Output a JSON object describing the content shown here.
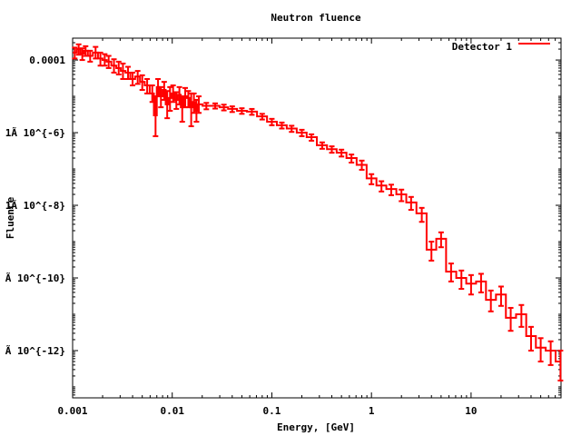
{
  "chart_data": {
    "type": "line",
    "style": "histogram-steps-with-error-bars",
    "title": "Neutron fluence",
    "xlabel": "Energy, [GeV]",
    "ylabel": "Fluence",
    "x_scale": "log",
    "y_scale": "log",
    "xlim": [
      0.001,
      80
    ],
    "ylim": [
      5e-14,
      0.0004
    ],
    "grid": false,
    "legend_position": "top-right",
    "x_ticks": [
      {
        "value": 0.001,
        "label": "0.001"
      },
      {
        "value": 0.01,
        "label": "0.01"
      },
      {
        "value": 0.1,
        "label": "0.1"
      },
      {
        "value": 1,
        "label": "1"
      },
      {
        "value": 10,
        "label": "10"
      }
    ],
    "y_ticks": [
      {
        "value": 0.0001,
        "label": "0.0001"
      },
      {
        "value": 1e-06,
        "label": "1Ã 10^{-6}"
      },
      {
        "value": 1e-08,
        "label": "1Ã 10^{-8}"
      },
      {
        "value": 1e-10,
        "label": "Ã 10^{-10}"
      },
      {
        "value": 1e-12,
        "label": "Ã 10^{-12}"
      }
    ],
    "series": [
      {
        "name": "Detector 1",
        "color": "#ff0000",
        "x": [
          0.00105,
          0.00115,
          0.00125,
          0.00135,
          0.0015,
          0.0017,
          0.0019,
          0.0021,
          0.0023,
          0.0026,
          0.0029,
          0.0032,
          0.0036,
          0.004,
          0.0045,
          0.005,
          0.0056,
          0.0063,
          0.0068,
          0.0072,
          0.0077,
          0.0083,
          0.0089,
          0.0095,
          0.0102,
          0.011,
          0.0118,
          0.0126,
          0.0135,
          0.0145,
          0.0155,
          0.0165,
          0.0175,
          0.0185,
          0.022,
          0.027,
          0.033,
          0.04,
          0.05,
          0.063,
          0.08,
          0.1,
          0.126,
          0.158,
          0.2,
          0.25,
          0.32,
          0.4,
          0.5,
          0.63,
          0.8,
          1.0,
          1.26,
          1.58,
          2.0,
          2.5,
          3.2,
          4.0,
          5.0,
          6.3,
          8.0,
          10.0,
          12.6,
          15.8,
          20.0,
          25.0,
          32.0,
          40.0,
          50.0,
          63.0,
          79.0
        ],
        "y": [
          0.00016,
          0.0002,
          0.00015,
          0.00018,
          0.00013,
          0.00016,
          0.00011,
          0.0001,
          9e-05,
          7e-05,
          6e-05,
          5e-05,
          4.5e-05,
          3e-05,
          3.5e-05,
          2.5e-05,
          2e-05,
          1.2e-05,
          3e-06,
          1.8e-05,
          1e-05,
          1.5e-05,
          6e-06,
          9e-06,
          1.2e-05,
          8e-06,
          1.1e-05,
          5e-06,
          1e-05,
          9e-06,
          5e-06,
          7e-06,
          4e-06,
          6e-06,
          5.5e-06,
          5.5e-06,
          5e-06,
          4.5e-06,
          4e-06,
          3.8e-06,
          2.8e-06,
          2e-06,
          1.6e-06,
          1.3e-06,
          1e-06,
          7.5e-07,
          4.5e-07,
          3.5e-07,
          2.8e-07,
          2e-07,
          1.3e-07,
          5.5e-08,
          3.5e-08,
          2.8e-08,
          2e-08,
          1.2e-08,
          6e-09,
          6e-10,
          1.2e-09,
          1.5e-10,
          1e-10,
          7e-11,
          8e-11,
          2.5e-11,
          3.5e-11,
          8e-12,
          1e-11,
          2.5e-12,
          1.2e-12,
          1e-12,
          5e-13
        ],
        "err_low": [
          0.00011,
          0.00014,
          0.0001,
          0.00013,
          9e-05,
          0.00011,
          7e-05,
          7e-05,
          6e-05,
          4.5e-05,
          4e-05,
          3e-05,
          3e-05,
          2e-05,
          2.2e-05,
          1.5e-05,
          1.2e-05,
          7e-06,
          8e-07,
          1e-05,
          5e-06,
          8e-06,
          2.5e-06,
          4e-06,
          7e-06,
          4.5e-06,
          6e-06,
          2e-06,
          5e-06,
          5e-06,
          1.5e-06,
          3.5e-06,
          2e-06,
          3.5e-06,
          4.4e-06,
          4.6e-06,
          4.1e-06,
          3.7e-06,
          3.3e-06,
          3.1e-06,
          2.3e-06,
          1.6e-06,
          1.3e-06,
          1.05e-06,
          8e-07,
          6e-07,
          3.6e-07,
          2.8e-07,
          2.2e-07,
          1.5e-07,
          9.5e-08,
          3.8e-08,
          2.4e-08,
          1.9e-08,
          1.3e-08,
          7.5e-09,
          3.5e-09,
          3e-10,
          7e-10,
          8e-11,
          5e-11,
          3.5e-11,
          4e-11,
          1.2e-11,
          1.7e-11,
          3.5e-12,
          4.5e-12,
          1e-12,
          5e-13,
          4e-13,
          1.5e-13
        ],
        "err_high": [
          0.00022,
          0.00027,
          0.00021,
          0.00024,
          0.00018,
          0.00023,
          0.00016,
          0.000145,
          0.00013,
          0.000105,
          9e-05,
          8e-05,
          6.5e-05,
          4.5e-05,
          5e-05,
          3.8e-05,
          3e-05,
          2e-05,
          1e-05,
          3e-05,
          1.8e-05,
          2.5e-05,
          1.4e-05,
          1.8e-05,
          2e-05,
          1.3e-05,
          1.8e-05,
          1e-05,
          1.7e-05,
          1.4e-05,
          1.2e-05,
          1.2e-05,
          8e-06,
          1e-05,
          6.6e-06,
          6.4e-06,
          5.9e-06,
          5.3e-06,
          4.7e-06,
          4.5e-06,
          3.3e-06,
          2.4e-06,
          1.9e-06,
          1.55e-06,
          1.2e-06,
          9e-07,
          5.4e-07,
          4.2e-07,
          3.4e-07,
          2.5e-07,
          1.7e-07,
          7.2e-08,
          4.6e-08,
          3.7e-08,
          2.7e-08,
          1.7e-08,
          8.5e-09,
          1e-09,
          1.8e-09,
          2.5e-10,
          1.6e-10,
          1.2e-10,
          1.3e-10,
          4.5e-11,
          5.8e-11,
          1.5e-11,
          1.8e-11,
          4.5e-12,
          2.2e-12,
          1.8e-12,
          1e-12
        ]
      }
    ]
  }
}
